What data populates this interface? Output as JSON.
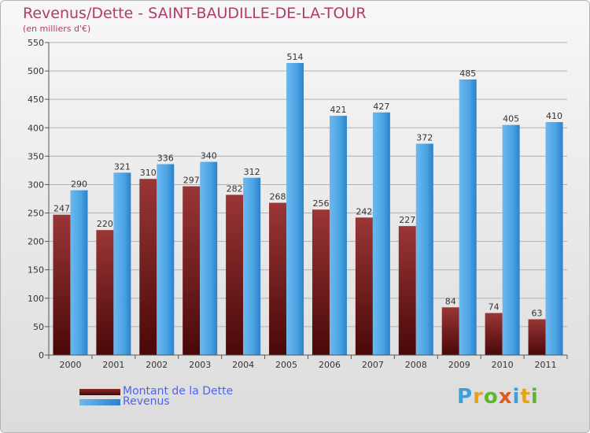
{
  "chart_data": {
    "type": "bar",
    "title": "Revenus/Dette - SAINT-BAUDILLE-DE-LA-TOUR",
    "subtitle": "(en milliers d'€)",
    "categories": [
      "2000",
      "2001",
      "2002",
      "2003",
      "2004",
      "2005",
      "2006",
      "2007",
      "2008",
      "2009",
      "2010",
      "2011"
    ],
    "series": [
      {
        "name": "Montant de la Dette",
        "color": "#8b2a2a",
        "values": [
          247,
          220,
          310,
          297,
          282,
          268,
          256,
          242,
          227,
          84,
          74,
          63
        ]
      },
      {
        "name": "Revenus",
        "color": "#4da6e6",
        "values": [
          290,
          321,
          336,
          340,
          312,
          514,
          421,
          427,
          372,
          485,
          405,
          410
        ]
      }
    ],
    "ylim": [
      0,
      550
    ],
    "yticks": [
      0,
      50,
      100,
      150,
      200,
      250,
      300,
      350,
      400,
      450,
      500,
      550
    ],
    "grid": true,
    "legend_position": "bottom-left",
    "data_labels": true
  },
  "logo": {
    "letters": [
      "P",
      "r",
      "o",
      "x",
      "i",
      "t",
      "i"
    ],
    "colors": [
      "#3aa0dc",
      "#e6a21a",
      "#5fb52e",
      "#e05a1e",
      "#3aa0dc",
      "#e6a21a",
      "#5fb52e"
    ]
  }
}
